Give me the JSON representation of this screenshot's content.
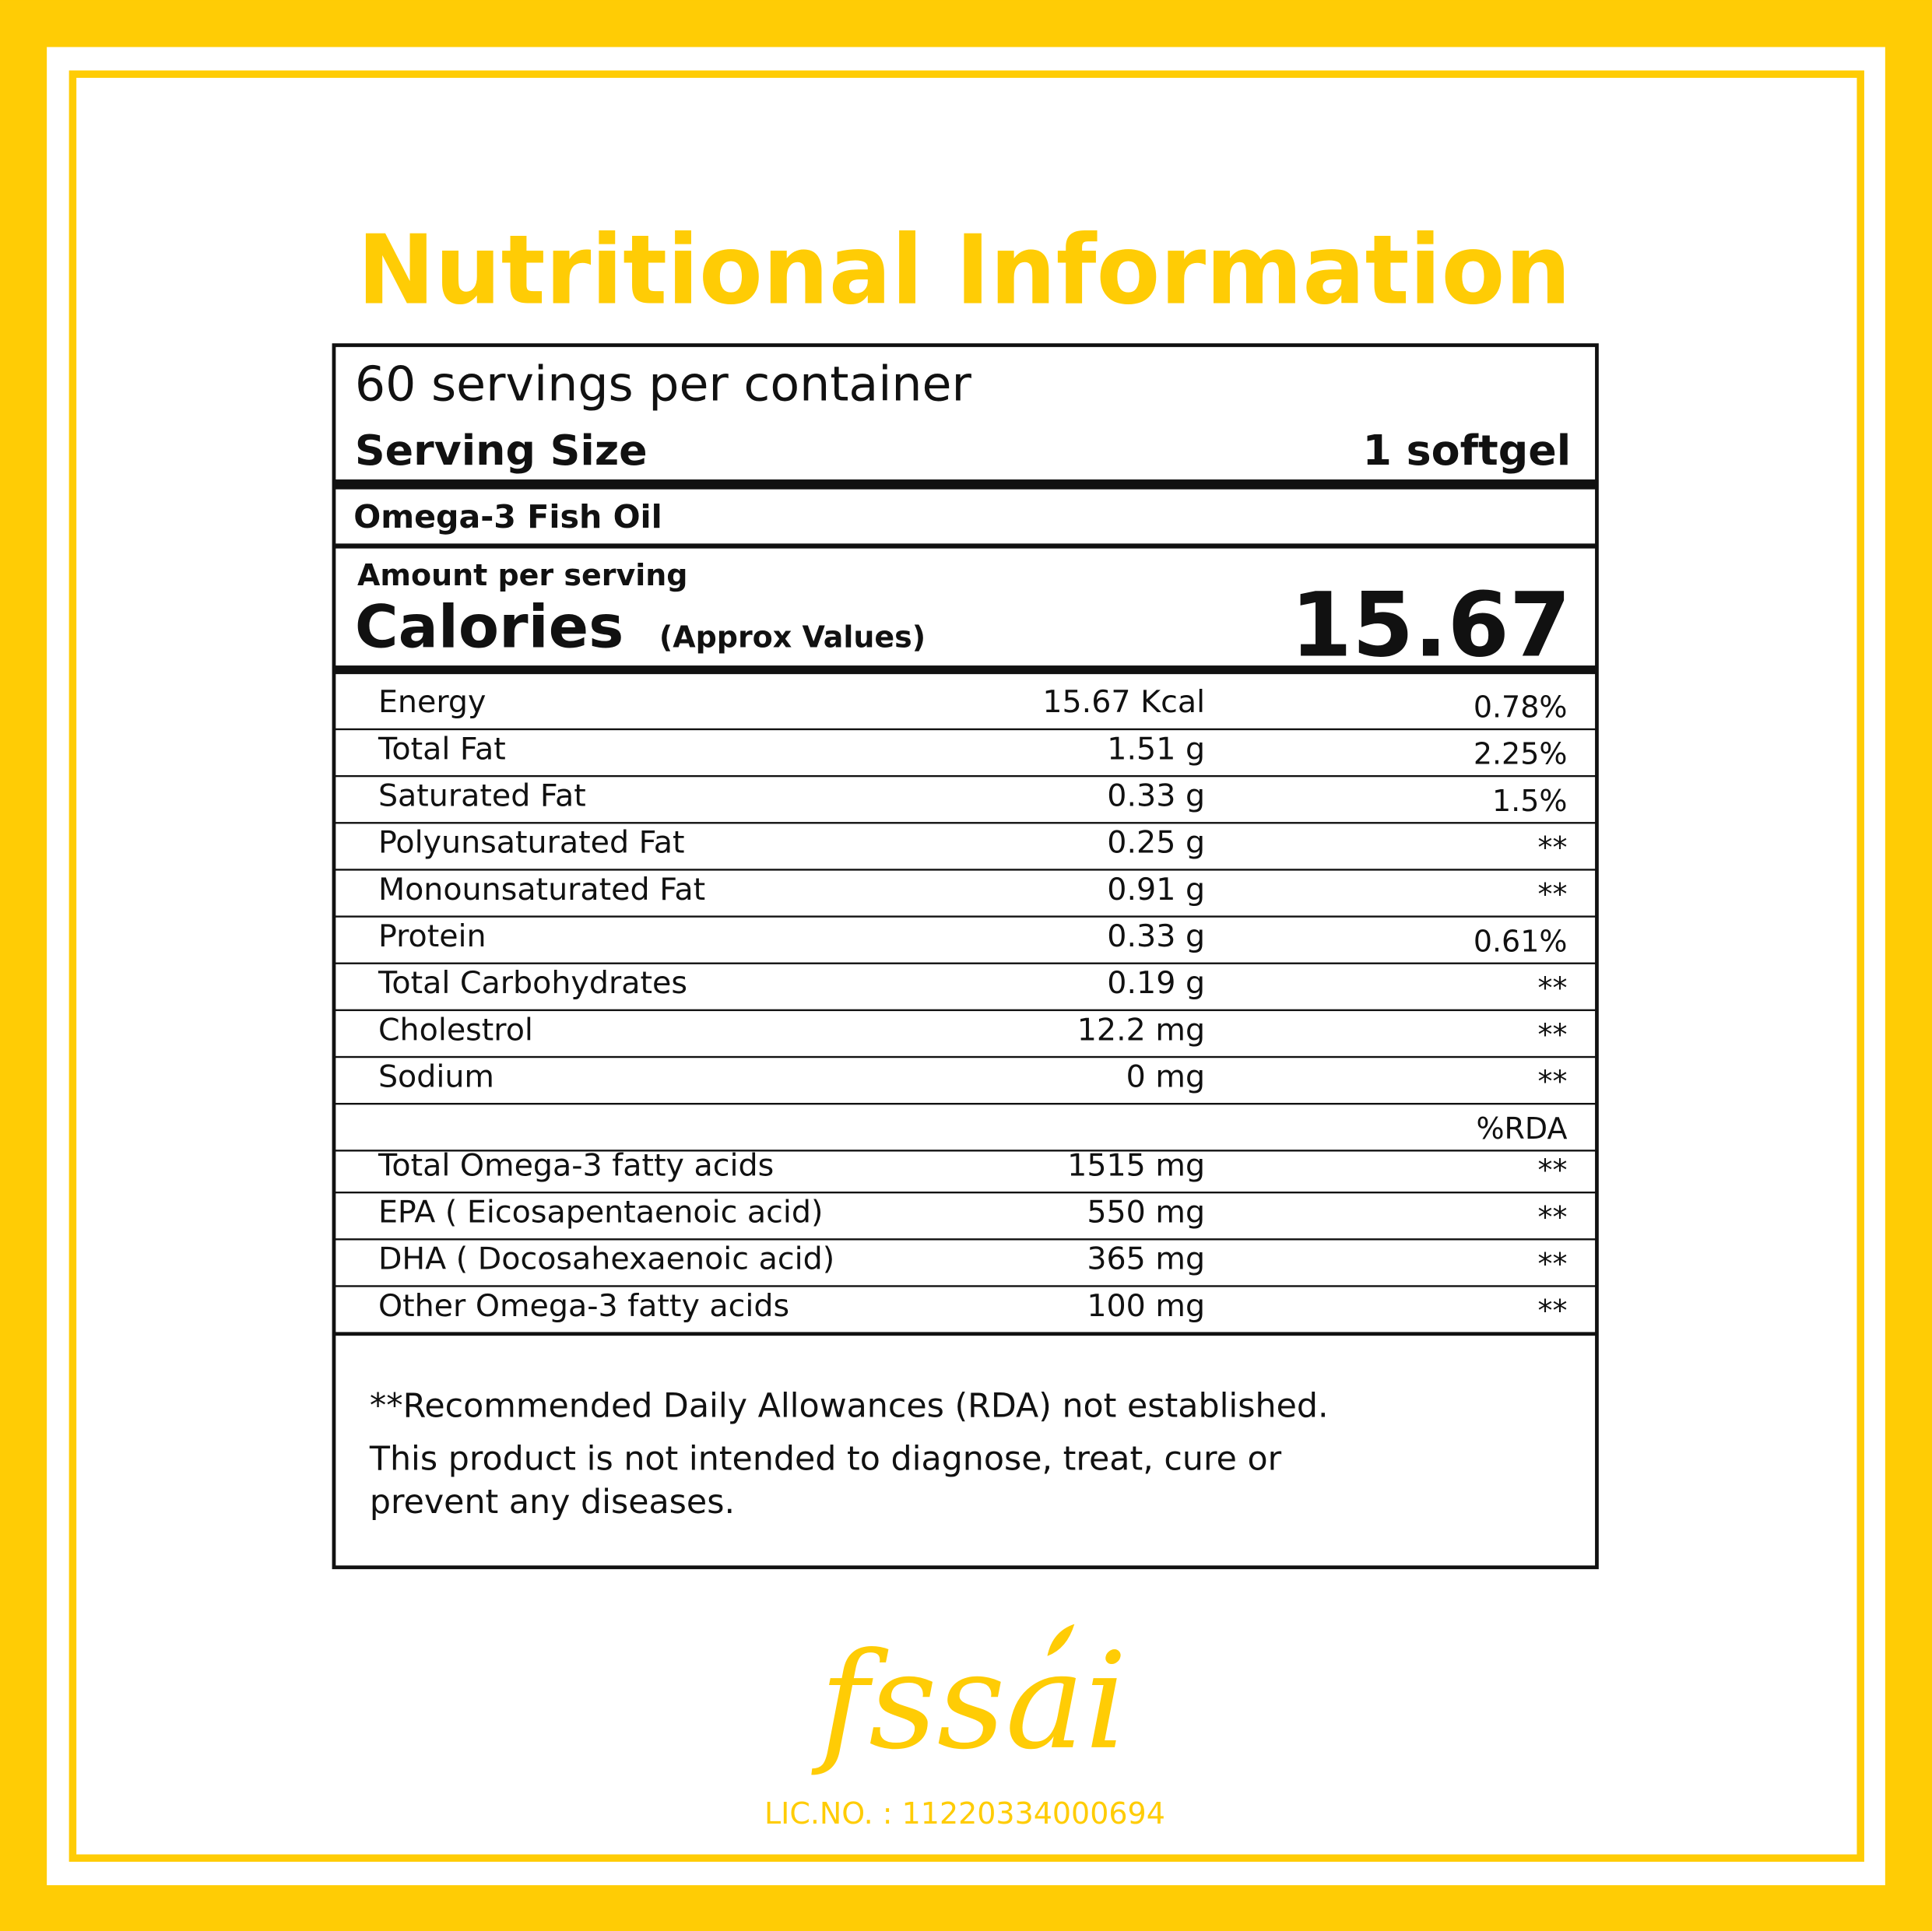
{
  "header": {
    "title": "Nutritional Information"
  },
  "label": {
    "servings": "60 servings per container",
    "serving_size_label": "Serving Size",
    "serving_size_value": "1 softgel",
    "product": "Omega-3 Fish Oil",
    "amount_per_serving": "Amount per serving",
    "calories_label": "Calories",
    "calories_note": "(Approx Values)",
    "calories_value": "15.67"
  },
  "table": {
    "rows": [
      [
        "Energy",
        "15.67 Kcal",
        "0.78%"
      ],
      [
        "Total Fat",
        "1.51 g",
        "2.25%"
      ],
      [
        "Saturated Fat",
        "0.33 g",
        "1.5%"
      ],
      [
        "Polyunsaturated Fat",
        "0.25 g",
        "**"
      ],
      [
        "Monounsaturated Fat",
        "0.91 g",
        "**"
      ],
      [
        "Protein",
        "0.33 g",
        "0.61%"
      ],
      [
        "Total Carbohydrates",
        "0.19 g",
        "**"
      ],
      [
        "Cholestrol",
        "12.2 mg",
        "**"
      ],
      [
        "Sodium",
        "0 mg",
        "**"
      ]
    ],
    "rda_header": "%RDA",
    "omega_rows": [
      [
        "Total Omega-3 fatty acids",
        "1515 mg",
        "**"
      ],
      [
        "EPA ( Eicosapentaenoic acid)",
        "550 mg",
        "**"
      ],
      [
        "DHA ( Docosahexaenoic acid)",
        "365 mg",
        "**"
      ],
      [
        "Other Omega-3 fatty acids",
        "100 mg",
        "**"
      ]
    ]
  },
  "footnotes": [
    "**Recommended Daily Allowances (RDA) not established.",
    "This product is not intended to diagnose, treat, cure or",
    "prevent any diseases."
  ],
  "logo": {
    "text": "fssai"
  },
  "license": "LIC.NO. : 11220334000694"
}
